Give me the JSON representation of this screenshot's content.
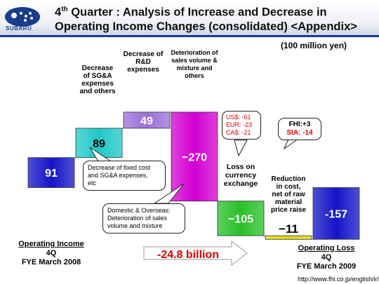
{
  "header": {
    "brand": "SUBARU",
    "title_line1_num": "4",
    "title_line1_sup": "th",
    "title_line1_rest": " Quarter : Analysis of Increase and Decrease in",
    "title_line2": "Operating Income Changes (consolidated) <Appendix>"
  },
  "unit": "(100 million yen)",
  "chart_data": {
    "type": "waterfall",
    "steps": [
      {
        "value": 91,
        "label": "91"
      },
      {
        "value": 89,
        "label": "89"
      },
      {
        "value": 49,
        "label": "49"
      },
      {
        "value": -270,
        "label": "−270"
      },
      {
        "value": -105,
        "label": "−105"
      },
      {
        "value": -11,
        "label": "−11"
      },
      {
        "value": -157,
        "label": "-157"
      }
    ],
    "bar_colors": [
      "#1414c8",
      "#20c8c8",
      "#9a70d8",
      "#d200d2",
      "#28c028",
      "#e0d800",
      "#1414c8"
    ]
  },
  "labels": {
    "sga_lines": [
      "Decrease",
      "of SG&A",
      "expenses",
      "and others"
    ],
    "rd_lines": [
      "Decrease of",
      "R&D",
      "expenses"
    ],
    "det_lines": [
      "Deterioration of",
      "sales volume &",
      "mixture and",
      "others"
    ],
    "fx_lines": [
      "Loss on",
      "currency",
      "exchange"
    ],
    "cost_lines": [
      "Reduction",
      "in cost,",
      "net of raw",
      "material",
      "price raise"
    ]
  },
  "callouts": {
    "fixed_cost_lines": [
      "Decrease of fixed cost",
      "and SG&A expenses,",
      "etc"
    ],
    "domestic_lines": [
      "Domestic & Overseas:",
      "Deterioration of sales",
      "volume and mixture"
    ],
    "currency_lines": [
      "US$: -61",
      "EUR: -23",
      "CA$: -21"
    ],
    "fhi": "FHI:+3",
    "sia": "SIA: -14"
  },
  "arrow_text": "-24.8 billion",
  "footer": {
    "left_title": "Operating Income",
    "left_q": "4Q",
    "left_fye": "FYE March 2008",
    "right_title": "Operating Loss",
    "right_q": "4Q",
    "right_fye": "FYE March 2009"
  },
  "url": "http://www.fhi.co.jp/english/ir/"
}
